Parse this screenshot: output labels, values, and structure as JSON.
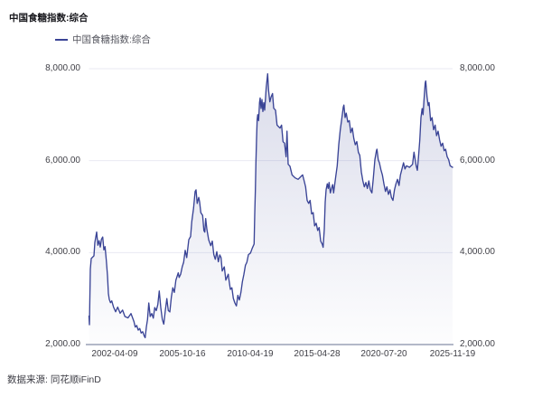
{
  "title": "中国食糖指数:综合",
  "legend": {
    "label": "中国食糖指数:综合",
    "marker_color": "#3a4496",
    "position": "top-left"
  },
  "source_note": "数据来源: 同花顺iFinD",
  "colors": {
    "line": "#3a4496",
    "area_top": "rgba(62,72,148,0.19)",
    "area_bottom": "rgba(62,72,148,0.01)",
    "grid": "#e9eaf3",
    "axis": "#a8aec0",
    "axis_label": "#3f3f46",
    "title_text": "#17171c",
    "legend_text": "#54555e"
  },
  "chart_data": {
    "type": "area",
    "title": "中国食糖指数:综合",
    "series_name": "中国食糖指数:综合",
    "grid": true,
    "legend_position": "top-left",
    "ylim": [
      2000,
      8000
    ],
    "y_ticks": [
      2000,
      4000,
      6000,
      8000
    ],
    "y_tick_labels": [
      "2,000.00",
      "4,000.00",
      "6,000.00",
      "8,000.00"
    ],
    "x_tick_labels": [
      "2002-04-09",
      "2005-10-16",
      "2010-04-19",
      "2015-04-28",
      "2020-07-20",
      "2025-11-19"
    ],
    "x_tick_pos": [
      0.0708,
      0.2571,
      0.4435,
      0.6273,
      0.8112,
      1.0
    ],
    "points": [
      [
        0.0,
        2620
      ],
      [
        0.0012,
        2430
      ],
      [
        0.0037,
        3640
      ],
      [
        0.0062,
        3870
      ],
      [
        0.0099,
        3900
      ],
      [
        0.0137,
        3930
      ],
      [
        0.0161,
        4220
      ],
      [
        0.0211,
        4450
      ],
      [
        0.0243,
        4160
      ],
      [
        0.0278,
        4260
      ],
      [
        0.0311,
        4120
      ],
      [
        0.0343,
        4290
      ],
      [
        0.0378,
        4340
      ],
      [
        0.041,
        4060
      ],
      [
        0.0442,
        4130
      ],
      [
        0.0477,
        3830
      ],
      [
        0.0509,
        3500
      ],
      [
        0.0534,
        3110
      ],
      [
        0.0559,
        2980
      ],
      [
        0.0591,
        2910
      ],
      [
        0.0626,
        2950
      ],
      [
        0.0676,
        2815
      ],
      [
        0.0733,
        2715
      ],
      [
        0.079,
        2815
      ],
      [
        0.0857,
        2680
      ],
      [
        0.0924,
        2750
      ],
      [
        0.0989,
        2610
      ],
      [
        0.1073,
        2580
      ],
      [
        0.1155,
        2675
      ],
      [
        0.1237,
        2500
      ],
      [
        0.1272,
        2380
      ],
      [
        0.1312,
        2415
      ],
      [
        0.1354,
        2315
      ],
      [
        0.1396,
        2350
      ],
      [
        0.1436,
        2250
      ],
      [
        0.1478,
        2280
      ],
      [
        0.152,
        2185
      ],
      [
        0.1545,
        2150
      ],
      [
        0.1578,
        2380
      ],
      [
        0.161,
        2545
      ],
      [
        0.1645,
        2905
      ],
      [
        0.1684,
        2610
      ],
      [
        0.1727,
        2675
      ],
      [
        0.1769,
        2575
      ],
      [
        0.1809,
        2805
      ],
      [
        0.1851,
        2740
      ],
      [
        0.1893,
        2870
      ],
      [
        0.1933,
        3165
      ],
      [
        0.1975,
        2800
      ],
      [
        0.2017,
        2545
      ],
      [
        0.2057,
        2445
      ],
      [
        0.2099,
        2740
      ],
      [
        0.2141,
        3000
      ],
      [
        0.2181,
        2740
      ],
      [
        0.2224,
        2710
      ],
      [
        0.2266,
        3035
      ],
      [
        0.2305,
        3235
      ],
      [
        0.2348,
        3135
      ],
      [
        0.239,
        3400
      ],
      [
        0.2455,
        3560
      ],
      [
        0.2479,
        3460
      ],
      [
        0.2522,
        3530
      ],
      [
        0.2564,
        3690
      ],
      [
        0.2604,
        3790
      ],
      [
        0.2646,
        4050
      ],
      [
        0.2688,
        3890
      ],
      [
        0.2745,
        4280
      ],
      [
        0.2795,
        4350
      ],
      [
        0.2827,
        4675
      ],
      [
        0.2877,
        4970
      ],
      [
        0.2919,
        5330
      ],
      [
        0.2944,
        5365
      ],
      [
        0.2976,
        5070
      ],
      [
        0.3019,
        5200
      ],
      [
        0.3043,
        5100
      ],
      [
        0.3076,
        4870
      ],
      [
        0.3125,
        4810
      ],
      [
        0.316,
        4480
      ],
      [
        0.3185,
        4445
      ],
      [
        0.321,
        4740
      ],
      [
        0.3242,
        4510
      ],
      [
        0.3292,
        4280
      ],
      [
        0.3349,
        4150
      ],
      [
        0.3391,
        4250
      ],
      [
        0.3433,
        3955
      ],
      [
        0.3473,
        3855
      ],
      [
        0.3516,
        4020
      ],
      [
        0.3558,
        3800
      ],
      [
        0.3598,
        3950
      ],
      [
        0.3632,
        3890
      ],
      [
        0.3665,
        3600
      ],
      [
        0.3722,
        3690
      ],
      [
        0.3764,
        3400
      ],
      [
        0.3831,
        3530
      ],
      [
        0.3846,
        3430
      ],
      [
        0.3888,
        3200
      ],
      [
        0.393,
        3235
      ],
      [
        0.397,
        3005
      ],
      [
        0.4012,
        2905
      ],
      [
        0.4055,
        2840
      ],
      [
        0.4094,
        3070
      ],
      [
        0.4137,
        2970
      ],
      [
        0.4179,
        3135
      ],
      [
        0.4219,
        3365
      ],
      [
        0.4261,
        3530
      ],
      [
        0.4303,
        3725
      ],
      [
        0.4343,
        3790
      ],
      [
        0.4385,
        3955
      ],
      [
        0.4442,
        3990
      ],
      [
        0.4492,
        4100
      ],
      [
        0.4542,
        4185
      ],
      [
        0.4559,
        4840
      ],
      [
        0.4576,
        5360
      ],
      [
        0.4591,
        5950
      ],
      [
        0.4609,
        6480
      ],
      [
        0.4626,
        6900
      ],
      [
        0.4641,
        7000
      ],
      [
        0.4666,
        6870
      ],
      [
        0.4691,
        7265
      ],
      [
        0.4708,
        7365
      ],
      [
        0.4733,
        7135
      ],
      [
        0.4758,
        7330
      ],
      [
        0.4783,
        7070
      ],
      [
        0.4808,
        7265
      ],
      [
        0.4833,
        7100
      ],
      [
        0.4875,
        7590
      ],
      [
        0.4915,
        7890
      ],
      [
        0.4939,
        7530
      ],
      [
        0.4974,
        7280
      ],
      [
        0.5006,
        7380
      ],
      [
        0.5048,
        7460
      ],
      [
        0.5081,
        7140
      ],
      [
        0.513,
        7100
      ],
      [
        0.5173,
        6775
      ],
      [
        0.5212,
        6740
      ],
      [
        0.5255,
        6710
      ],
      [
        0.5297,
        6775
      ],
      [
        0.5337,
        6415
      ],
      [
        0.5379,
        6380
      ],
      [
        0.5421,
        6085
      ],
      [
        0.5446,
        6640
      ],
      [
        0.5478,
        5920
      ],
      [
        0.5528,
        5880
      ],
      [
        0.5585,
        5690
      ],
      [
        0.5669,
        5625
      ],
      [
        0.5752,
        5595
      ],
      [
        0.5834,
        5660
      ],
      [
        0.5876,
        5690
      ],
      [
        0.5918,
        5560
      ],
      [
        0.5958,
        5430
      ],
      [
        0.6,
        5135
      ],
      [
        0.6042,
        5070
      ],
      [
        0.6082,
        5135
      ],
      [
        0.6124,
        4840
      ],
      [
        0.6166,
        4870
      ],
      [
        0.6206,
        4580
      ],
      [
        0.6248,
        4640
      ],
      [
        0.6291,
        4480
      ],
      [
        0.633,
        4545
      ],
      [
        0.6373,
        4250
      ],
      [
        0.6415,
        4185
      ],
      [
        0.644,
        4115
      ],
      [
        0.6472,
        4510
      ],
      [
        0.6497,
        5100
      ],
      [
        0.6522,
        5365
      ],
      [
        0.6554,
        5495
      ],
      [
        0.6579,
        5395
      ],
      [
        0.6604,
        5525
      ],
      [
        0.6639,
        5300
      ],
      [
        0.6671,
        5400
      ],
      [
        0.6703,
        5480
      ],
      [
        0.6728,
        5300
      ],
      [
        0.6788,
        5660
      ],
      [
        0.6827,
        5890
      ],
      [
        0.687,
        6345
      ],
      [
        0.6912,
        6675
      ],
      [
        0.6952,
        6905
      ],
      [
        0.6994,
        7165
      ],
      [
        0.7011,
        7210
      ],
      [
        0.7043,
        6940
      ],
      [
        0.7076,
        7035
      ],
      [
        0.7118,
        6840
      ],
      [
        0.716,
        6870
      ],
      [
        0.72,
        6610
      ],
      [
        0.7242,
        6710
      ],
      [
        0.7284,
        6480
      ],
      [
        0.7324,
        6345
      ],
      [
        0.7366,
        6415
      ],
      [
        0.7408,
        6185
      ],
      [
        0.7448,
        6115
      ],
      [
        0.7491,
        5755
      ],
      [
        0.7533,
        5560
      ],
      [
        0.7572,
        5430
      ],
      [
        0.7615,
        5525
      ],
      [
        0.7657,
        5395
      ],
      [
        0.7697,
        5560
      ],
      [
        0.7739,
        5365
      ],
      [
        0.7781,
        5300
      ],
      [
        0.7821,
        5625
      ],
      [
        0.7863,
        6020
      ],
      [
        0.7905,
        6215
      ],
      [
        0.792,
        6250
      ],
      [
        0.7955,
        6020
      ],
      [
        0.7988,
        5955
      ],
      [
        0.803,
        5800
      ],
      [
        0.8069,
        5690
      ],
      [
        0.8112,
        5495
      ],
      [
        0.8154,
        5330
      ],
      [
        0.8194,
        5430
      ],
      [
        0.8236,
        5265
      ],
      [
        0.8278,
        5365
      ],
      [
        0.8318,
        5200
      ],
      [
        0.836,
        5135
      ],
      [
        0.8402,
        5365
      ],
      [
        0.8442,
        5495
      ],
      [
        0.8484,
        5595
      ],
      [
        0.8526,
        5460
      ],
      [
        0.8566,
        5690
      ],
      [
        0.8609,
        5820
      ],
      [
        0.8651,
        5955
      ],
      [
        0.869,
        5820
      ],
      [
        0.8733,
        5890
      ],
      [
        0.8815,
        5855
      ],
      [
        0.8899,
        5920
      ],
      [
        0.8939,
        6185
      ],
      [
        0.8999,
        5890
      ],
      [
        0.9031,
        5790
      ],
      [
        0.9063,
        6085
      ],
      [
        0.9098,
        6445
      ],
      [
        0.913,
        6935
      ],
      [
        0.9163,
        7135
      ],
      [
        0.9187,
        7000
      ],
      [
        0.9212,
        7295
      ],
      [
        0.9247,
        7690
      ],
      [
        0.9262,
        7735
      ],
      [
        0.9297,
        7395
      ],
      [
        0.9329,
        7200
      ],
      [
        0.9354,
        7265
      ],
      [
        0.9396,
        6870
      ],
      [
        0.9436,
        6935
      ],
      [
        0.9478,
        6675
      ],
      [
        0.952,
        6775
      ],
      [
        0.956,
        6545
      ],
      [
        0.9602,
        6640
      ],
      [
        0.9644,
        6445
      ],
      [
        0.9684,
        6315
      ],
      [
        0.9727,
        6380
      ],
      [
        0.9769,
        6215
      ],
      [
        0.9808,
        6250
      ],
      [
        0.9851,
        6085
      ],
      [
        0.9893,
        6020
      ],
      [
        0.9933,
        5890
      ],
      [
        1.0,
        5855
      ]
    ]
  }
}
